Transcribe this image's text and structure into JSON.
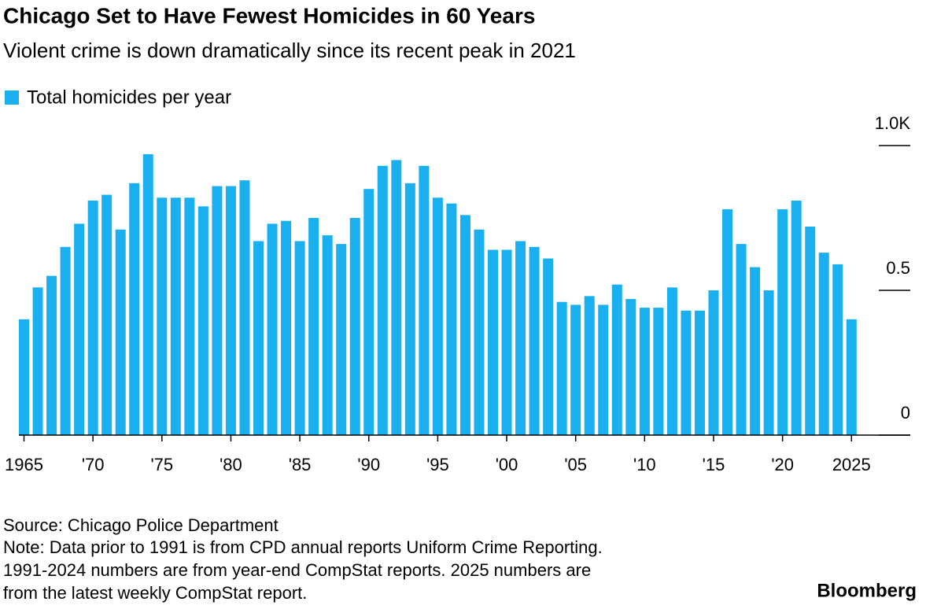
{
  "chart_data": {
    "type": "bar",
    "title": "Chicago Set to Have Fewest Homicides in 60 Years",
    "subtitle": "Violent crime is down dramatically since its recent peak in 2021",
    "categories": [
      "1965",
      null,
      null,
      null,
      null,
      "'70",
      null,
      null,
      null,
      null,
      "'75",
      null,
      null,
      null,
      null,
      "'80",
      null,
      null,
      null,
      null,
      "'85",
      null,
      null,
      null,
      null,
      "'90",
      null,
      null,
      null,
      null,
      "'95",
      null,
      null,
      null,
      null,
      "'00",
      null,
      null,
      null,
      null,
      "'05",
      null,
      null,
      null,
      null,
      "'10",
      null,
      null,
      null,
      null,
      "'15",
      null,
      null,
      null,
      null,
      "'20",
      null,
      null,
      null,
      null,
      "2025"
    ],
    "series": [
      {
        "name": "Total homicides per year",
        "color": "#1ab0ef",
        "values": [
          0.4,
          0.51,
          0.55,
          0.65,
          0.73,
          0.81,
          0.83,
          0.71,
          0.87,
          0.97,
          0.82,
          0.82,
          0.82,
          0.79,
          0.86,
          0.86,
          0.88,
          0.67,
          0.73,
          0.74,
          0.67,
          0.75,
          0.69,
          0.66,
          0.75,
          0.85,
          0.93,
          0.95,
          0.87,
          0.93,
          0.82,
          0.8,
          0.76,
          0.71,
          0.64,
          0.64,
          0.67,
          0.65,
          0.61,
          0.46,
          0.45,
          0.48,
          0.45,
          0.52,
          0.47,
          0.44,
          0.44,
          0.51,
          0.43,
          0.43,
          0.5,
          0.78,
          0.66,
          0.58,
          0.5,
          0.78,
          0.81,
          0.72,
          0.63,
          0.59,
          0.4
        ]
      }
    ],
    "ylim": [
      0,
      1
    ],
    "yticks": [
      0,
      0.5,
      {
        "value": 1,
        "label": "1.0K"
      }
    ],
    "source": "Source: Chicago Police Department",
    "notes": [
      "Note: Data prior to 1991 is from CPD annual reports Uniform Crime Reporting.",
      "1991-2024 numbers are from year-end CompStat reports. 2025 numbers are",
      "from the latest weekly CompStat report."
    ],
    "brand": "Bloomberg"
  }
}
